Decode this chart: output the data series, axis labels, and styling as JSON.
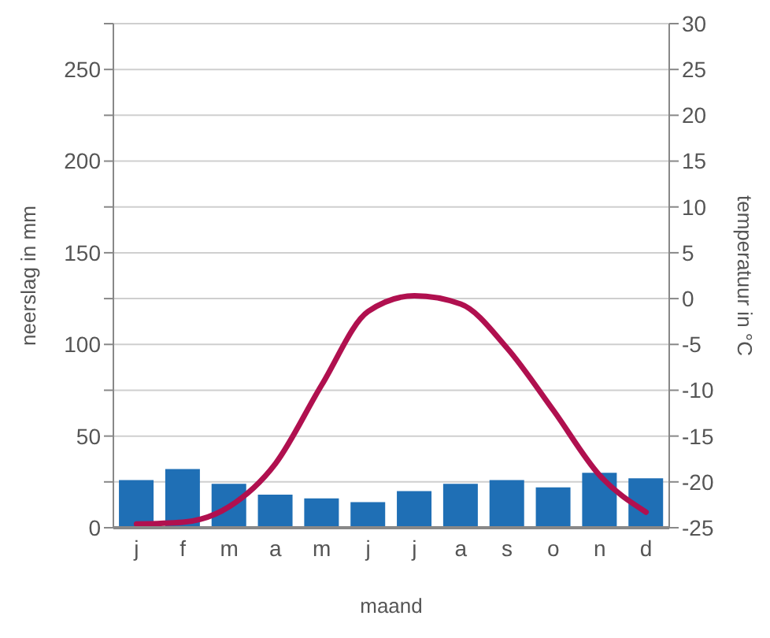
{
  "chart_data": {
    "type": "bar",
    "xlabel": "maand",
    "ylabel": "neerslag in mm",
    "y2label": "temperatuur in °C",
    "categories": [
      "j",
      "f",
      "m",
      "a",
      "m",
      "j",
      "j",
      "a",
      "s",
      "o",
      "n",
      "d"
    ],
    "series": [
      {
        "color": "#1f6fb5",
        "values": [
          26,
          32,
          24,
          18,
          16,
          14,
          20,
          24,
          26,
          22,
          30,
          27
        ]
      },
      {
        "type": "line",
        "axis": "y2",
        "color": "#b0104f",
        "values": [
          -24.6,
          -24.4,
          -22.7,
          -18,
          -9.4,
          -1.4,
          0.3,
          -0.6,
          -5.4,
          -12.2,
          -19.3,
          -23.3
        ]
      }
    ],
    "ylim": [
      0,
      275
    ],
    "yticks": [
      0,
      {
        "value": 25,
        "label": null
      },
      50,
      {
        "value": 75,
        "label": null
      },
      100,
      {
        "value": 125,
        "label": null
      },
      150,
      {
        "value": 175,
        "label": null
      },
      200,
      {
        "value": 225,
        "label": null
      },
      250,
      {
        "value": 275,
        "label": null
      }
    ],
    "y2lim": [
      -25,
      30
    ],
    "y2ticks": [
      -25,
      -20,
      -15,
      -10,
      -5,
      0,
      5,
      10,
      15,
      20,
      25,
      30
    ],
    "grid": "y",
    "marker": "none",
    "line_style": "solid"
  }
}
